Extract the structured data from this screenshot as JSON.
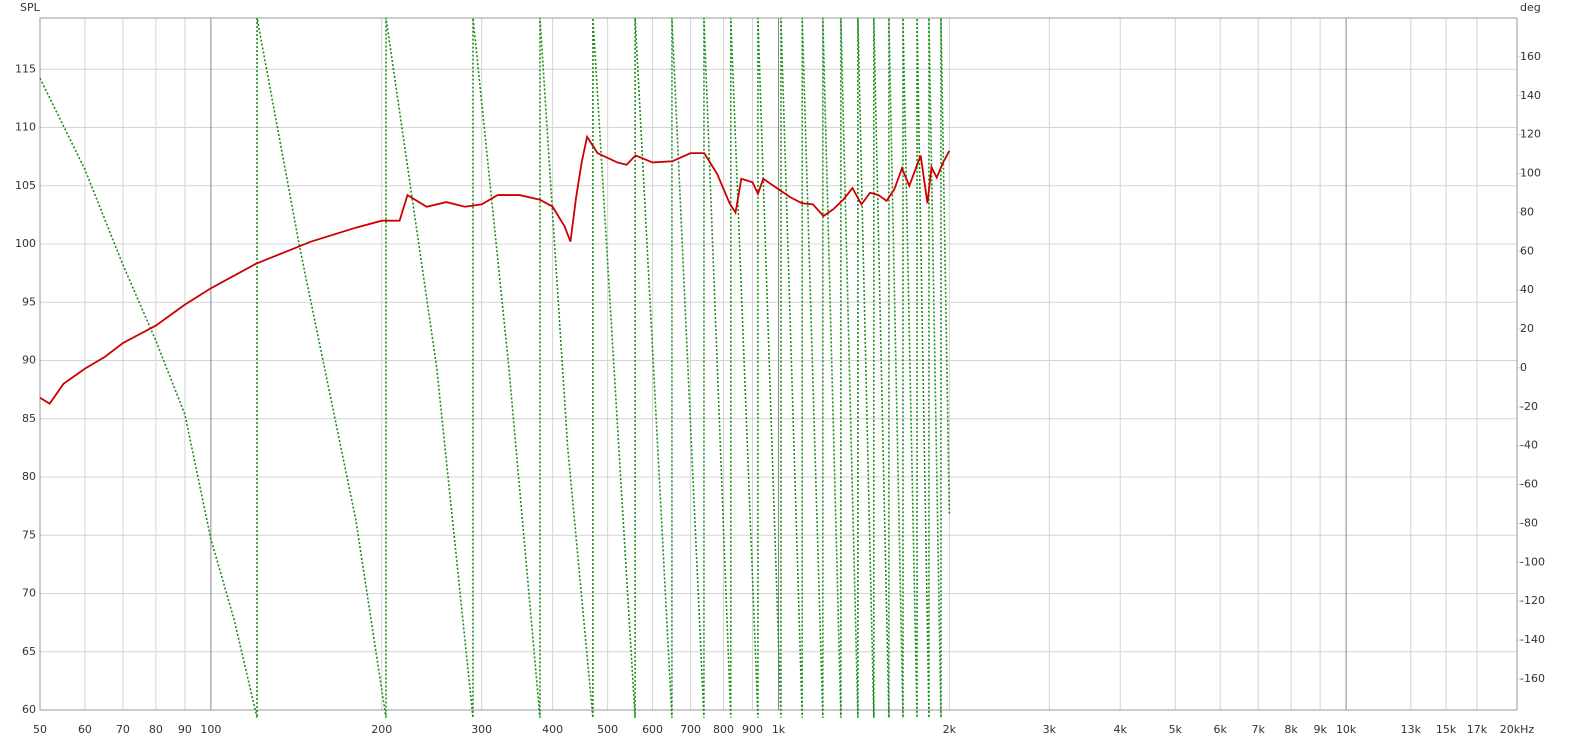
{
  "chart_data": {
    "type": "line",
    "y_label": "SPL",
    "y2_label": "deg",
    "xscale": "log",
    "grid": true,
    "xlim": [
      50,
      20000
    ],
    "xticks": [
      50,
      60,
      70,
      80,
      90,
      100,
      200,
      300,
      400,
      500,
      600,
      700,
      800,
      900,
      {
        "value": 1000,
        "label": "1k"
      },
      {
        "value": 2000,
        "label": "2k"
      },
      {
        "value": 3000,
        "label": "3k"
      },
      {
        "value": 4000,
        "label": "4k"
      },
      {
        "value": 5000,
        "label": "5k"
      },
      {
        "value": 6000,
        "label": "6k"
      },
      {
        "value": 7000,
        "label": "7k"
      },
      {
        "value": 8000,
        "label": "8k"
      },
      {
        "value": 9000,
        "label": "9k"
      },
      {
        "value": 10000,
        "label": "10k"
      },
      {
        "value": 13000,
        "label": "13k"
      },
      {
        "value": 15000,
        "label": "15k"
      },
      {
        "value": 17000,
        "label": "17k"
      },
      {
        "value": 20000,
        "label": "20kHz"
      }
    ],
    "ylim": [
      60,
      119.4
    ],
    "yticks": [
      60,
      65,
      70,
      75,
      80,
      85,
      90,
      95,
      100,
      105,
      110,
      115
    ],
    "y2lim": [
      -176,
      180
    ],
    "y2ticks": [
      -160,
      -140,
      -120,
      -100,
      -80,
      -60,
      -40,
      -20,
      0,
      20,
      40,
      60,
      80,
      100,
      120,
      140,
      160
    ],
    "series": [
      {
        "color": "#cc0000",
        "x": [
          50,
          52,
          55,
          60,
          65,
          70,
          80,
          90,
          100,
          120,
          150,
          180,
          200,
          215,
          222,
          240,
          260,
          280,
          300,
          320,
          350,
          380,
          400,
          420,
          430,
          440,
          450,
          460,
          480,
          520,
          540,
          560,
          600,
          650,
          700,
          740,
          780,
          820,
          840,
          860,
          900,
          920,
          940,
          1000,
          1050,
          1100,
          1150,
          1200,
          1250,
          1300,
          1350,
          1400,
          1450,
          1500,
          1550,
          1600,
          1650,
          1700,
          1780,
          1830,
          1860,
          1900,
          1950,
          2000
        ],
        "values": [
          86.8,
          86.3,
          88,
          89.3,
          90.3,
          91.5,
          93,
          94.8,
          96.2,
          98.3,
          100.2,
          101.4,
          102,
          102,
          104.2,
          103.2,
          103.6,
          103.2,
          103.4,
          104.2,
          104.2,
          103.8,
          103.2,
          101.5,
          100.2,
          104,
          107,
          109.2,
          107.8,
          107,
          106.8,
          107.6,
          107,
          107.1,
          107.8,
          107.8,
          106,
          103.5,
          102.7,
          105.6,
          105.3,
          104.3,
          105.6,
          104.7,
          104,
          103.5,
          103.4,
          102.4,
          103,
          103.8,
          104.8,
          103.4,
          104.4,
          104.2,
          103.7,
          104.7,
          106.5,
          105,
          107.6,
          103.5,
          106.6,
          105.7,
          107,
          108
        ]
      },
      {
        "color": "#1a8c1a",
        "axis": "y2",
        "x": [
          50,
          60,
          70,
          80,
          90,
          100,
          110,
          120.6,
          120.6,
          143.6,
          180,
          203.5,
          203.5,
          250,
          289.6,
          289.6,
          335,
          380,
          380,
          425,
          471,
          471,
          559,
          559,
          649,
          649,
          739,
          739,
          824,
          824,
          920,
          920,
          1010,
          1010,
          1101,
          1101,
          1197,
          1197,
          1288,
          1288,
          1380,
          1380,
          1472,
          1472,
          1565,
          1565,
          1657,
          1657,
          1754,
          1754,
          1841,
          1841,
          1933,
          1933,
          2000
        ],
        "values": [
          149,
          102,
          53,
          14,
          -24,
          -88,
          -130,
          -180,
          180,
          61,
          -78,
          -180,
          180,
          0,
          -180,
          180,
          0,
          -180,
          180,
          -40,
          -180,
          180,
          -180,
          180,
          -180,
          180,
          -180,
          180,
          -180,
          180,
          -180,
          180,
          -180,
          180,
          -180,
          180,
          -180,
          180,
          -180,
          180,
          -180,
          180,
          -180,
          180,
          -180,
          180,
          -180,
          180,
          -180,
          180,
          -180,
          180,
          -180,
          180,
          -75
        ]
      }
    ]
  }
}
